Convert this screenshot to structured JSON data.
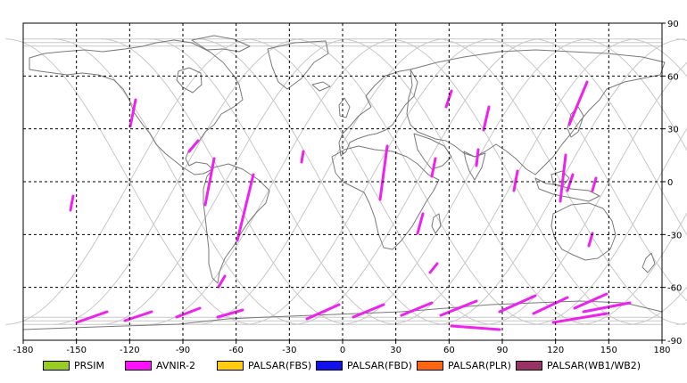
{
  "map": {
    "lon_ticks": [
      "-180",
      "-150",
      "-120",
      "-90",
      "-60",
      "-30",
      "0",
      "30",
      "60",
      "90",
      "120",
      "150",
      "180"
    ],
    "lat_ticks": [
      "90",
      "60",
      "30",
      "0",
      "-30",
      "-60",
      "-90"
    ],
    "colors": {
      "border": "#000000",
      "grid": "#000000",
      "coast": "#7a7a7a",
      "orbit": "#c8c8c8",
      "swath": "#ee22ee"
    }
  },
  "legend": [
    {
      "label": "PRSIM",
      "color": "#99cc22"
    },
    {
      "label": "AVNIR-2",
      "color": "#ff11ff"
    },
    {
      "label": "PALSAR(FBS)",
      "color": "#ffcc11"
    },
    {
      "label": "PALSAR(FBD)",
      "color": "#1111ee"
    },
    {
      "label": "PALSAR(PLR)",
      "color": "#ff6611"
    },
    {
      "label": "PALSAR(WB1/WB2)",
      "color": "#993366"
    }
  ]
}
